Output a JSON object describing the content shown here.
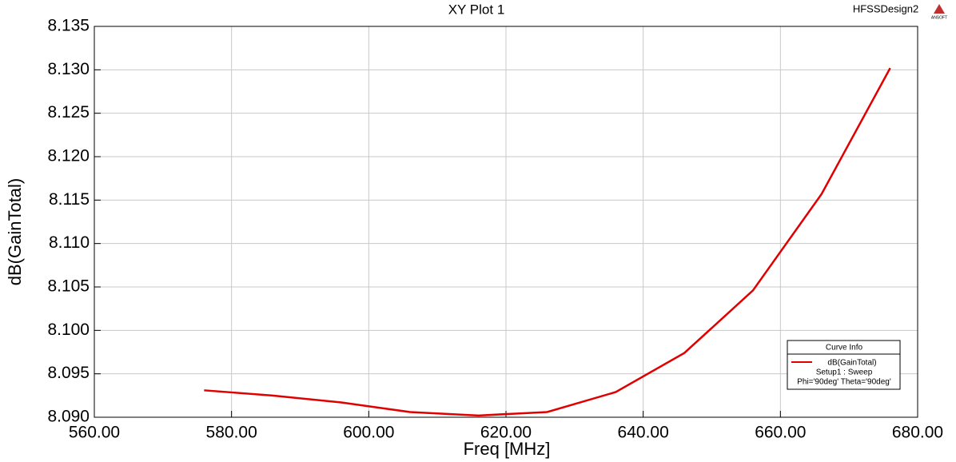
{
  "chart_data": {
    "type": "line",
    "title": "XY Plot 1",
    "design_name": "HFSSDesign2",
    "logo_text": "ANSOFT",
    "x_label": "Freq [MHz]",
    "y_label": "dB(GainTotal)",
    "x": [
      576,
      586,
      596,
      606,
      616,
      626,
      636,
      646,
      656,
      666,
      676
    ],
    "series": [
      {
        "name": "dB(GainTotal)",
        "color": "#e00000",
        "values": [
          8.0931,
          8.0925,
          8.0917,
          8.0906,
          8.0902,
          8.0906,
          8.0929,
          8.0974,
          8.1046,
          8.1157,
          8.1302
        ]
      }
    ],
    "xlim": [
      560,
      680
    ],
    "xticks": [
      {
        "value": 560,
        "label": "560.00"
      },
      {
        "value": 580,
        "label": "580.00"
      },
      {
        "value": 600,
        "label": "600.00"
      },
      {
        "value": 620,
        "label": "620.00"
      },
      {
        "value": 640,
        "label": "640.00"
      },
      {
        "value": 660,
        "label": "660.00"
      },
      {
        "value": 680,
        "label": "680.00"
      }
    ],
    "ylim": [
      8.09,
      8.135
    ],
    "yticks": [
      {
        "value": 8.09,
        "label": "8.090"
      },
      8.095,
      {
        "value": 8.1,
        "label": "8.100"
      },
      8.105,
      {
        "value": 8.11,
        "label": "8.110"
      },
      8.115,
      {
        "value": 8.12,
        "label": "8.120"
      },
      8.125,
      {
        "value": 8.13,
        "label": "8.130"
      },
      8.135
    ],
    "grid": true,
    "legend": {
      "title": "Curve Info",
      "lines": [
        "Setup1 : Sweep",
        "Phi='90deg' Theta='90deg'"
      ],
      "position": "lower-right"
    }
  }
}
